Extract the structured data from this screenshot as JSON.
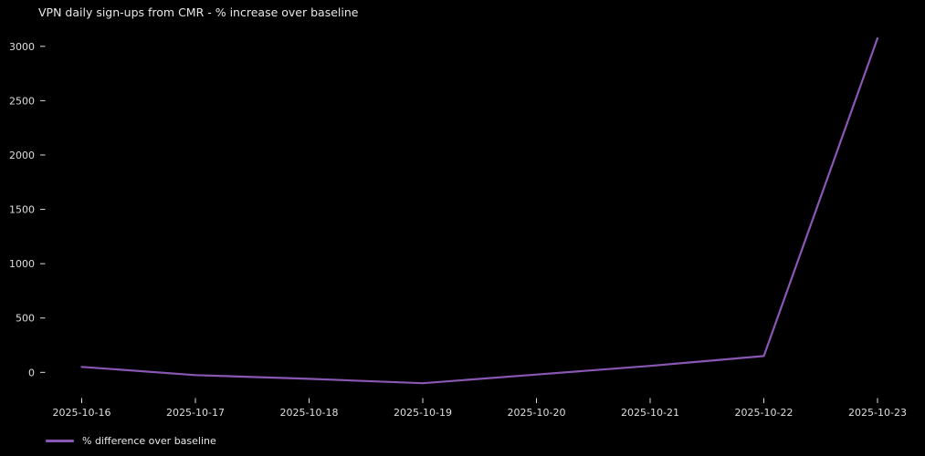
{
  "window": {
    "background_color": "#000000",
    "text_color": "#e8e8e8"
  },
  "chart_data": {
    "type": "line",
    "title": "VPN daily sign-ups from CMR - % increase over baseline",
    "xlabel": "",
    "ylabel": "",
    "categories": [
      "2025-10-16",
      "2025-10-17",
      "2025-10-18",
      "2025-10-19",
      "2025-10-20",
      "2025-10-21",
      "2025-10-22",
      "2025-10-23"
    ],
    "series": [
      {
        "name": "% difference over baseline",
        "values": [
          50,
          -25,
          -60,
          -100,
          -20,
          60,
          150,
          3075
        ],
        "color": "#8a57b4"
      }
    ],
    "y_ticks": [
      0,
      500,
      1000,
      1500,
      2000,
      2500,
      3000
    ],
    "ylim": [
      -180,
      3150
    ],
    "grid": false,
    "legend_position": "below-axis-lower-left",
    "background": "#000000",
    "tick_color": "#dedede"
  }
}
